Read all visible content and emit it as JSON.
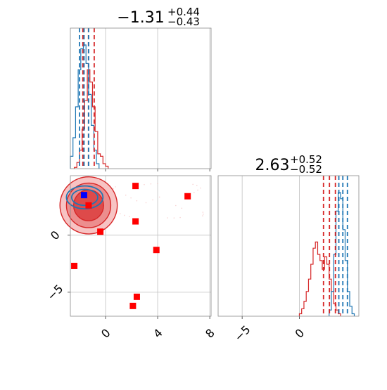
{
  "colors": {
    "red": "#d62728",
    "blue": "#1f77b4",
    "marker_red": "#ff0000",
    "marker_blue": "#0000ff",
    "grid": "#c0c0c0",
    "axis": "#8a8a8a"
  },
  "panel_titles": {
    "top": {
      "main": "−1.31",
      "sup": "+0.44",
      "sub": "−0.43"
    },
    "right": {
      "main": "2.63",
      "sup": "+0.52",
      "sub": "−0.52"
    }
  },
  "chart_data": [
    {
      "type": "histogram",
      "panel": "top-left marginal",
      "x_range": [
        -2.7,
        8.1
      ],
      "grid": true,
      "x_ticks": [
        0,
        4,
        8
      ],
      "series": [
        {
          "color": "red",
          "bins": [
            -2.4,
            -2.2,
            -2.0,
            -1.8,
            -1.6,
            -1.4,
            -1.2,
            -1.0,
            -0.8,
            -0.6,
            -0.4,
            -0.2,
            0.0,
            0.2
          ],
          "heights": [
            0.01,
            0.05,
            0.15,
            0.32,
            0.55,
            0.8,
            0.7,
            0.5,
            0.3,
            0.12,
            0.1,
            0.04,
            0.02
          ]
        },
        {
          "color": "blue",
          "bins": [
            -2.7,
            -2.5,
            -2.3,
            -2.1,
            -1.9,
            -1.7,
            -1.5,
            -1.3,
            -1.1,
            -0.9,
            -0.7,
            -0.5
          ],
          "heights": [
            0.1,
            0.25,
            0.5,
            0.8,
            0.97,
            1.0,
            0.85,
            0.6,
            0.35,
            0.15,
            0.04
          ]
        }
      ],
      "quantile_lines": [
        {
          "color": "red",
          "x": [
            -1.74,
            -1.31,
            -0.87
          ]
        },
        {
          "color": "blue",
          "x": [
            -2.0,
            -1.65,
            -1.3
          ]
        }
      ]
    },
    {
      "type": "scatter",
      "panel": "bottom-left 2D",
      "x_range": [
        -2.7,
        8.1
      ],
      "y_range": [
        -7.1,
        5.2
      ],
      "grid": true,
      "x_ticks": [
        0,
        4,
        8
      ],
      "y_ticks": [
        0,
        -5
      ],
      "red_contour": {
        "center": [
          -1.3,
          2.6
        ],
        "radii": [
          [
            2.2,
            2.5
          ],
          [
            1.7,
            1.95
          ],
          [
            1.15,
            1.35
          ]
        ]
      },
      "blue_contour": {
        "center": [
          -1.6,
          3.3
        ],
        "radii": [
          [
            1.4,
            1.0
          ],
          [
            1.0,
            0.7
          ]
        ]
      },
      "points": [
        {
          "x": 2.3,
          "y": 4.3,
          "color": "marker_red"
        },
        {
          "x": 6.3,
          "y": 3.4,
          "color": "marker_red"
        },
        {
          "x": 2.3,
          "y": 1.2,
          "color": "marker_red"
        },
        {
          "x": -0.4,
          "y": 0.3,
          "color": "marker_red"
        },
        {
          "x": 3.9,
          "y": -1.3,
          "color": "marker_red"
        },
        {
          "x": -2.4,
          "y": -2.7,
          "color": "marker_red"
        },
        {
          "x": 2.4,
          "y": -5.4,
          "color": "marker_red"
        },
        {
          "x": 2.1,
          "y": -6.2,
          "color": "marker_red"
        },
        {
          "x": -1.3,
          "y": 2.6,
          "color": "marker_red"
        },
        {
          "x": -1.65,
          "y": 3.5,
          "color": "marker_blue"
        }
      ]
    },
    {
      "type": "histogram",
      "panel": "bottom-right marginal",
      "x_range": [
        -7.1,
        5.2
      ],
      "grid": true,
      "x_ticks": [
        -5,
        0
      ],
      "series": [
        {
          "color": "red",
          "bins": [
            0.0,
            0.2,
            0.4,
            0.6,
            0.8,
            1.0,
            1.2,
            1.4,
            1.6,
            1.8,
            2.0,
            2.2,
            2.4,
            2.6,
            2.8,
            3.0,
            3.2,
            3.4,
            3.6
          ],
          "heights": [
            0.02,
            0.06,
            0.12,
            0.2,
            0.3,
            0.42,
            0.55,
            0.6,
            0.5,
            0.45,
            0.38,
            0.48,
            0.42,
            0.3,
            0.2,
            0.1,
            0.05,
            0.02
          ]
        },
        {
          "color": "blue",
          "bins": [
            2.6,
            2.8,
            3.0,
            3.2,
            3.4,
            3.6,
            3.8,
            4.0,
            4.2,
            4.4,
            4.6,
            4.8
          ],
          "heights": [
            0.05,
            0.2,
            0.5,
            0.85,
            1.0,
            0.95,
            0.7,
            0.45,
            0.2,
            0.08,
            0.02
          ]
        }
      ],
      "quantile_lines": [
        {
          "color": "red",
          "x": [
            2.11,
            2.63,
            3.15
          ]
        },
        {
          "color": "blue",
          "x": [
            3.45,
            3.8,
            4.2
          ]
        }
      ]
    }
  ]
}
